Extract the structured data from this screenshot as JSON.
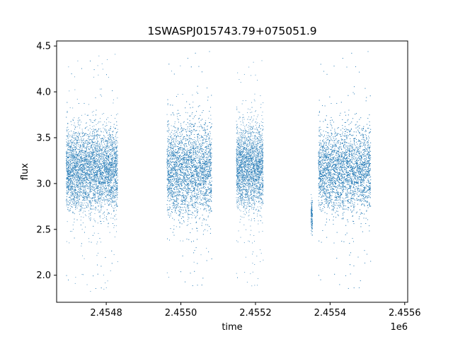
{
  "chart_data": {
    "type": "scatter",
    "title": "1SWASPJ015743.79+075051.9",
    "xlabel": "time",
    "ylabel": "flux",
    "x_offset_label": "1e6",
    "xlim": [
      2454667,
      2455608
    ],
    "ylim": [
      1.705,
      4.555
    ],
    "x_ticks": [
      2454800,
      2455000,
      2455200,
      2455400,
      2455600
    ],
    "x_tick_labels": [
      "2.4548",
      "2.4550",
      "2.4552",
      "2.4554",
      "2.4556"
    ],
    "y_ticks": [
      2.0,
      2.5,
      3.0,
      3.5,
      4.0,
      4.5
    ],
    "y_tick_labels": [
      "2.0",
      "2.5",
      "3.0",
      "3.5",
      "4.0",
      "4.5"
    ],
    "grid": false,
    "legend": "none",
    "marker_color": "#1f77b4",
    "series": [
      {
        "values": [
          {
            "x_range": [
              2454692,
              2454830
            ],
            "flux_center": 3.15,
            "flux_spread": 0.22,
            "flux_min": 1.82,
            "flux_max": 4.42
          },
          {
            "x_range": [
              2454962,
              2455082
            ],
            "flux_center": 3.15,
            "flux_spread": 0.25,
            "flux_min": 1.85,
            "flux_max": 4.45
          },
          {
            "x_range": [
              2455148,
              2455220
            ],
            "flux_center": 3.18,
            "flux_spread": 0.22,
            "flux_min": 1.85,
            "flux_max": 4.35
          },
          {
            "x_range": [
              2455348,
              2455352
            ],
            "flux_center": 2.65,
            "flux_spread": 0.08,
            "flux_min": 2.35,
            "flux_max": 2.9
          },
          {
            "x_range": [
              2455368,
              2455508
            ],
            "flux_center": 3.15,
            "flux_spread": 0.22,
            "flux_min": 1.82,
            "flux_max": 4.45
          }
        ]
      }
    ]
  }
}
